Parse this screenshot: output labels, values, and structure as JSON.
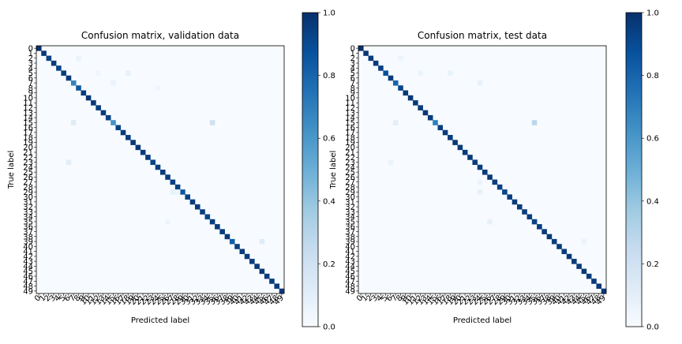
{
  "chart_data": [
    {
      "type": "heatmap",
      "title": "Confusion matrix, validation data",
      "xlabel": "Predicted label",
      "ylabel": "True label",
      "tick_labels": [
        "0",
        "1",
        "2",
        "3",
        "4",
        "5",
        "6",
        "7",
        "8",
        "9",
        "10",
        "11",
        "12",
        "13",
        "14",
        "15",
        "16",
        "17",
        "18",
        "19",
        "20",
        "21",
        "22",
        "23",
        "24",
        "25",
        "26",
        "27",
        "28",
        "29",
        "30",
        "31",
        "32",
        "33",
        "34",
        "35",
        "36",
        "37",
        "38",
        "39",
        "40",
        "41",
        "42",
        "43",
        "44",
        "45",
        "46",
        "47",
        "48",
        "49"
      ],
      "colormap": "Blues",
      "value_range": [
        0,
        1
      ],
      "colorbar_ticks": [
        "0.0",
        "0.2",
        "0.4",
        "0.6",
        "0.8",
        "1.0"
      ],
      "diagonal": [
        1.0,
        0.97,
        0.93,
        0.96,
        0.92,
        0.95,
        0.96,
        0.68,
        0.85,
        0.96,
        0.98,
        0.97,
        0.95,
        0.96,
        0.93,
        0.62,
        0.93,
        0.96,
        0.95,
        0.97,
        0.97,
        0.96,
        0.96,
        0.92,
        0.95,
        0.96,
        0.95,
        0.94,
        0.93,
        0.85,
        0.94,
        0.95,
        0.96,
        0.95,
        0.92,
        0.95,
        0.96,
        0.95,
        0.97,
        0.83,
        0.95,
        0.96,
        0.96,
        0.95,
        0.96,
        0.97,
        0.96,
        0.95,
        0.96,
        0.96
      ],
      "off_diagonal": [
        {
          "true": 2,
          "pred": 8,
          "value": 0.06
        },
        {
          "true": 5,
          "pred": 12,
          "value": 0.04
        },
        {
          "true": 5,
          "pred": 18,
          "value": 0.08
        },
        {
          "true": 7,
          "pred": 15,
          "value": 0.06
        },
        {
          "true": 8,
          "pred": 24,
          "value": 0.04
        },
        {
          "true": 15,
          "pred": 7,
          "value": 0.12
        },
        {
          "true": 15,
          "pred": 35,
          "value": 0.2
        },
        {
          "true": 23,
          "pred": 6,
          "value": 0.1
        },
        {
          "true": 29,
          "pred": 27,
          "value": 0.08
        },
        {
          "true": 29,
          "pred": 28,
          "value": 0.05
        },
        {
          "true": 35,
          "pred": 26,
          "value": 0.05
        },
        {
          "true": 39,
          "pred": 45,
          "value": 0.12
        }
      ]
    },
    {
      "type": "heatmap",
      "title": "Confusion matrix, test data",
      "xlabel": "Predicted label",
      "ylabel": "True label",
      "tick_labels": [
        "0",
        "1",
        "2",
        "3",
        "4",
        "5",
        "6",
        "7",
        "8",
        "9",
        "10",
        "11",
        "12",
        "13",
        "14",
        "15",
        "16",
        "17",
        "18",
        "19",
        "20",
        "21",
        "22",
        "23",
        "24",
        "25",
        "26",
        "27",
        "28",
        "29",
        "30",
        "31",
        "32",
        "33",
        "34",
        "35",
        "36",
        "37",
        "38",
        "39",
        "40",
        "41",
        "42",
        "43",
        "44",
        "45",
        "46",
        "47",
        "48",
        "49"
      ],
      "colormap": "Blues",
      "value_range": [
        0,
        1
      ],
      "colorbar_ticks": [
        "0.0",
        "0.2",
        "0.4",
        "0.6",
        "0.8",
        "1.0"
      ],
      "diagonal": [
        1.0,
        0.97,
        0.95,
        0.96,
        0.94,
        0.88,
        0.96,
        0.8,
        0.92,
        0.97,
        0.97,
        0.96,
        0.96,
        0.97,
        0.95,
        0.7,
        0.95,
        0.96,
        0.96,
        0.97,
        0.96,
        0.96,
        0.97,
        0.95,
        0.95,
        0.96,
        0.96,
        0.95,
        0.94,
        0.92,
        0.95,
        0.96,
        0.96,
        0.95,
        0.95,
        0.93,
        0.96,
        0.96,
        0.97,
        0.95,
        0.96,
        0.96,
        0.97,
        0.96,
        0.96,
        0.97,
        0.96,
        0.96,
        0.97,
        0.97
      ],
      "off_diagonal": [
        {
          "true": 2,
          "pred": 8,
          "value": 0.05
        },
        {
          "true": 5,
          "pred": 12,
          "value": 0.06
        },
        {
          "true": 5,
          "pred": 18,
          "value": 0.07
        },
        {
          "true": 7,
          "pred": 24,
          "value": 0.08
        },
        {
          "true": 15,
          "pred": 7,
          "value": 0.1
        },
        {
          "true": 15,
          "pred": 35,
          "value": 0.28
        },
        {
          "true": 23,
          "pred": 6,
          "value": 0.06
        },
        {
          "true": 27,
          "pred": 24,
          "value": 0.06
        },
        {
          "true": 29,
          "pred": 24,
          "value": 0.08
        },
        {
          "true": 35,
          "pred": 26,
          "value": 0.08
        },
        {
          "true": 39,
          "pred": 45,
          "value": 0.06
        }
      ]
    }
  ]
}
